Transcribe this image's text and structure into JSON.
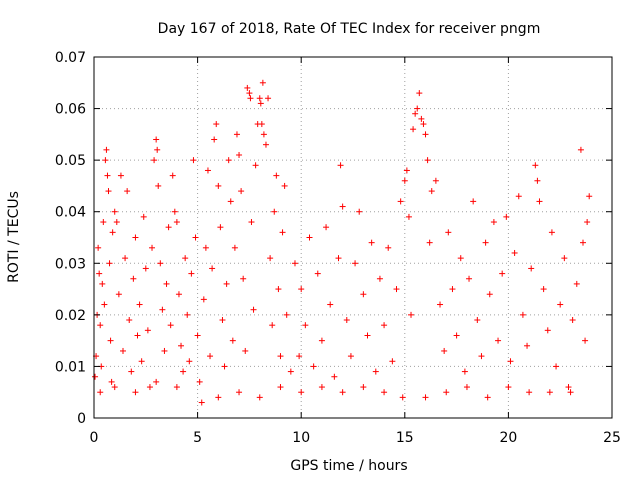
{
  "chart_data": {
    "type": "scatter",
    "title": "Day 167 of 2018, Rate Of TEC Index for receiver pngm",
    "xlabel": "GPS time / hours",
    "ylabel": "ROTI / TECUs",
    "xlim": [
      0,
      25
    ],
    "ylim": [
      0,
      0.07
    ],
    "grid": true,
    "marker": "+",
    "series_color": "#ff0000",
    "x_ticks": [
      {
        "value": 0,
        "label": "0"
      },
      {
        "value": 5,
        "label": "5"
      },
      {
        "value": 10,
        "label": "10"
      },
      {
        "value": 15,
        "label": "15"
      },
      {
        "value": 20,
        "label": "20"
      },
      {
        "value": 25,
        "label": "25"
      }
    ],
    "y_ticks": [
      {
        "value": 0,
        "label": "0"
      },
      {
        "value": 0.01,
        "label": "0.01"
      },
      {
        "value": 0.02,
        "label": "0.02"
      },
      {
        "value": 0.03,
        "label": "0.03"
      },
      {
        "value": 0.04,
        "label": "0.04"
      },
      {
        "value": 0.05,
        "label": "0.05"
      },
      {
        "value": 0.06,
        "label": "0.06"
      },
      {
        "value": 0.07,
        "label": "0.07"
      }
    ],
    "series": [
      {
        "name": "ROTI",
        "points": [
          [
            0.05,
            0.008
          ],
          [
            0.1,
            0.012
          ],
          [
            0.15,
            0.02
          ],
          [
            0.2,
            0.033
          ],
          [
            0.25,
            0.028
          ],
          [
            0.3,
            0.018
          ],
          [
            0.35,
            0.01
          ],
          [
            0.4,
            0.026
          ],
          [
            0.45,
            0.038
          ],
          [
            0.5,
            0.022
          ],
          [
            0.55,
            0.05
          ],
          [
            0.6,
            0.052
          ],
          [
            0.65,
            0.047
          ],
          [
            0.7,
            0.044
          ],
          [
            0.75,
            0.03
          ],
          [
            0.8,
            0.015
          ],
          [
            0.85,
            0.007
          ],
          [
            0.9,
            0.036
          ],
          [
            1.0,
            0.04
          ],
          [
            1.1,
            0.038
          ],
          [
            1.2,
            0.024
          ],
          [
            1.3,
            0.047
          ],
          [
            1.4,
            0.013
          ],
          [
            1.5,
            0.031
          ],
          [
            1.6,
            0.044
          ],
          [
            1.7,
            0.019
          ],
          [
            1.8,
            0.009
          ],
          [
            1.9,
            0.027
          ],
          [
            2.0,
            0.035
          ],
          [
            2.1,
            0.016
          ],
          [
            2.2,
            0.022
          ],
          [
            2.3,
            0.011
          ],
          [
            2.4,
            0.039
          ],
          [
            2.5,
            0.029
          ],
          [
            2.6,
            0.017
          ],
          [
            2.7,
            0.006
          ],
          [
            2.8,
            0.033
          ],
          [
            2.9,
            0.05
          ],
          [
            3.0,
            0.054
          ],
          [
            3.05,
            0.052
          ],
          [
            3.1,
            0.045
          ],
          [
            3.2,
            0.03
          ],
          [
            3.3,
            0.021
          ],
          [
            3.4,
            0.013
          ],
          [
            3.5,
            0.026
          ],
          [
            3.6,
            0.037
          ],
          [
            3.7,
            0.018
          ],
          [
            3.8,
            0.047
          ],
          [
            3.9,
            0.04
          ],
          [
            4.0,
            0.038
          ],
          [
            4.1,
            0.024
          ],
          [
            4.2,
            0.014
          ],
          [
            4.3,
            0.009
          ],
          [
            4.4,
            0.031
          ],
          [
            4.5,
            0.02
          ],
          [
            4.6,
            0.011
          ],
          [
            4.7,
            0.028
          ],
          [
            4.8,
            0.05
          ],
          [
            4.9,
            0.035
          ],
          [
            5.0,
            0.016
          ],
          [
            5.1,
            0.007
          ],
          [
            5.2,
            0.003
          ],
          [
            5.3,
            0.023
          ],
          [
            5.4,
            0.033
          ],
          [
            5.5,
            0.048
          ],
          [
            5.6,
            0.012
          ],
          [
            5.7,
            0.029
          ],
          [
            5.8,
            0.054
          ],
          [
            5.9,
            0.057
          ],
          [
            6.0,
            0.045
          ],
          [
            6.1,
            0.037
          ],
          [
            6.2,
            0.019
          ],
          [
            6.3,
            0.01
          ],
          [
            6.4,
            0.026
          ],
          [
            6.5,
            0.05
          ],
          [
            6.6,
            0.042
          ],
          [
            6.7,
            0.015
          ],
          [
            6.8,
            0.033
          ],
          [
            6.9,
            0.055
          ],
          [
            7.0,
            0.051
          ],
          [
            7.1,
            0.044
          ],
          [
            7.2,
            0.027
          ],
          [
            7.3,
            0.013
          ],
          [
            7.4,
            0.064
          ],
          [
            7.5,
            0.063
          ],
          [
            7.55,
            0.062
          ],
          [
            7.6,
            0.038
          ],
          [
            7.7,
            0.021
          ],
          [
            7.8,
            0.049
          ],
          [
            7.9,
            0.057
          ],
          [
            8.0,
            0.062
          ],
          [
            8.05,
            0.061
          ],
          [
            8.1,
            0.057
          ],
          [
            8.15,
            0.065
          ],
          [
            8.2,
            0.055
          ],
          [
            8.3,
            0.053
          ],
          [
            8.4,
            0.062
          ],
          [
            8.5,
            0.031
          ],
          [
            8.6,
            0.018
          ],
          [
            8.7,
            0.04
          ],
          [
            8.8,
            0.047
          ],
          [
            8.9,
            0.025
          ],
          [
            9.0,
            0.012
          ],
          [
            9.1,
            0.036
          ],
          [
            9.2,
            0.045
          ],
          [
            9.3,
            0.02
          ],
          [
            9.5,
            0.009
          ],
          [
            9.7,
            0.03
          ],
          [
            9.9,
            0.012
          ],
          [
            10.0,
            0.025
          ],
          [
            10.2,
            0.018
          ],
          [
            10.4,
            0.035
          ],
          [
            10.6,
            0.01
          ],
          [
            10.8,
            0.028
          ],
          [
            11.0,
            0.015
          ],
          [
            11.2,
            0.037
          ],
          [
            11.4,
            0.022
          ],
          [
            11.6,
            0.008
          ],
          [
            11.8,
            0.031
          ],
          [
            11.9,
            0.049
          ],
          [
            12.0,
            0.041
          ],
          [
            12.2,
            0.019
          ],
          [
            12.4,
            0.012
          ],
          [
            12.6,
            0.03
          ],
          [
            12.8,
            0.04
          ],
          [
            13.0,
            0.024
          ],
          [
            13.2,
            0.016
          ],
          [
            13.4,
            0.034
          ],
          [
            13.6,
            0.009
          ],
          [
            13.8,
            0.027
          ],
          [
            14.0,
            0.018
          ],
          [
            14.2,
            0.033
          ],
          [
            14.4,
            0.011
          ],
          [
            14.6,
            0.025
          ],
          [
            14.8,
            0.042
          ],
          [
            14.9,
            0.004
          ],
          [
            15.0,
            0.046
          ],
          [
            15.1,
            0.048
          ],
          [
            15.2,
            0.039
          ],
          [
            15.3,
            0.02
          ],
          [
            15.4,
            0.056
          ],
          [
            15.5,
            0.059
          ],
          [
            15.6,
            0.06
          ],
          [
            15.7,
            0.063
          ],
          [
            15.8,
            0.058
          ],
          [
            15.9,
            0.057
          ],
          [
            16.0,
            0.055
          ],
          [
            16.1,
            0.05
          ],
          [
            16.2,
            0.034
          ],
          [
            16.3,
            0.044
          ],
          [
            16.5,
            0.046
          ],
          [
            16.7,
            0.022
          ],
          [
            16.9,
            0.013
          ],
          [
            17.1,
            0.036
          ],
          [
            17.3,
            0.025
          ],
          [
            17.5,
            0.016
          ],
          [
            17.7,
            0.031
          ],
          [
            17.9,
            0.009
          ],
          [
            18.1,
            0.027
          ],
          [
            18.3,
            0.042
          ],
          [
            18.5,
            0.019
          ],
          [
            18.7,
            0.012
          ],
          [
            18.9,
            0.034
          ],
          [
            19.1,
            0.024
          ],
          [
            19.3,
            0.038
          ],
          [
            19.5,
            0.015
          ],
          [
            19.7,
            0.028
          ],
          [
            19.9,
            0.039
          ],
          [
            20.1,
            0.011
          ],
          [
            20.3,
            0.032
          ],
          [
            20.5,
            0.043
          ],
          [
            20.7,
            0.02
          ],
          [
            20.9,
            0.014
          ],
          [
            21.1,
            0.029
          ],
          [
            21.3,
            0.049
          ],
          [
            21.4,
            0.046
          ],
          [
            21.5,
            0.042
          ],
          [
            21.7,
            0.025
          ],
          [
            21.9,
            0.017
          ],
          [
            22.1,
            0.036
          ],
          [
            22.3,
            0.01
          ],
          [
            22.5,
            0.022
          ],
          [
            22.7,
            0.031
          ],
          [
            22.9,
            0.006
          ],
          [
            23.1,
            0.019
          ],
          [
            23.3,
            0.026
          ],
          [
            23.5,
            0.052
          ],
          [
            23.6,
            0.034
          ],
          [
            23.7,
            0.015
          ],
          [
            23.8,
            0.038
          ],
          [
            23.9,
            0.043
          ],
          [
            0.3,
            0.005
          ],
          [
            1.0,
            0.006
          ],
          [
            2.0,
            0.005
          ],
          [
            3.0,
            0.007
          ],
          [
            4.0,
            0.006
          ],
          [
            6.0,
            0.004
          ],
          [
            7.0,
            0.005
          ],
          [
            8.0,
            0.004
          ],
          [
            9.0,
            0.006
          ],
          [
            10.0,
            0.005
          ],
          [
            11.0,
            0.006
          ],
          [
            12.0,
            0.005
          ],
          [
            13.0,
            0.006
          ],
          [
            14.0,
            0.005
          ],
          [
            16.0,
            0.004
          ],
          [
            17.0,
            0.005
          ],
          [
            18.0,
            0.006
          ],
          [
            19.0,
            0.004
          ],
          [
            20.0,
            0.006
          ],
          [
            21.0,
            0.005
          ],
          [
            22.0,
            0.005
          ],
          [
            23.0,
            0.005
          ]
        ]
      }
    ]
  }
}
